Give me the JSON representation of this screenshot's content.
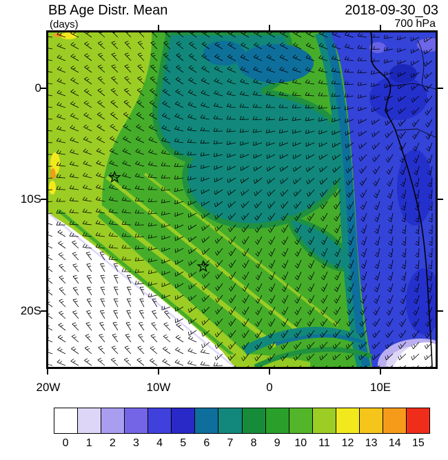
{
  "header": {
    "title": "BB Age Distr. Mean",
    "datetime": "2018-09-30_03",
    "units": "(days)",
    "level": "700 hPa"
  },
  "chart_data": {
    "type": "heatmap",
    "title": "BB Age Distr. Mean",
    "units": "days",
    "valid_time": "2018-09-30_03",
    "level": "700 hPa",
    "description": "Filled-contour map of biomass-burning age distribution mean (days) at 700 hPa over the southeast Atlantic and west-central Africa, with wind barbs overlaid",
    "x_axis": {
      "ticks": [
        "20W",
        "10W",
        "0",
        "10E"
      ],
      "range_deg": [
        -20,
        15
      ],
      "unit": "degrees longitude"
    },
    "y_axis": {
      "ticks": [
        "0",
        "10S",
        "20S"
      ],
      "range_deg": [
        5,
        -25
      ],
      "unit": "degrees latitude"
    },
    "colorbar": {
      "levels": [
        "0",
        "1",
        "2",
        "3",
        "4",
        "5",
        "6",
        "7",
        "8",
        "9",
        "10",
        "11",
        "12",
        "13",
        "14",
        "15"
      ],
      "colors": [
        "#ffffff",
        "#ddd6f6",
        "#a99df0",
        "#7465e6",
        "#4040dd",
        "#2929c8",
        "#0e6f9c",
        "#11887b",
        "#168c3a",
        "#2aa02a",
        "#52b52a",
        "#9ccd24",
        "#f2e91d",
        "#f5c51c",
        "#f59a1a",
        "#ee2e1b"
      ]
    },
    "field_summary": [
      {
        "region": "southwest ocean corner (south of ~12S, west of ~5W)",
        "age_days": "0 (white, sparse chaotic barbs)"
      },
      {
        "region": "western edge and diagonal band bordering the white area",
        "age_days": "11-14 (yellow-green with yellow/orange streaks)"
      },
      {
        "region": "domain interior",
        "age_days": "9-10 (green)"
      },
      {
        "region": "central plume descending from the northern boundary",
        "age_days": "6-7 (teal) with 6 (dark cyan) core"
      },
      {
        "region": "eastern third over and near the African coast",
        "age_days": "3-5 (blue, darkest patches along the coast)"
      },
      {
        "region": "far southeastern corner",
        "age_days": "0-2 (white patch with purple fringe)"
      }
    ],
    "overlays": {
      "wind_barbs": "700 hPa wind barbs, black, dense regular grid",
      "coastline": "African west coast with faint country borders",
      "markers": [
        {
          "symbol": "open star",
          "lon": -14,
          "lat": -8
        },
        {
          "symbol": "open star",
          "lon": -6,
          "lat": -16
        }
      ]
    }
  }
}
